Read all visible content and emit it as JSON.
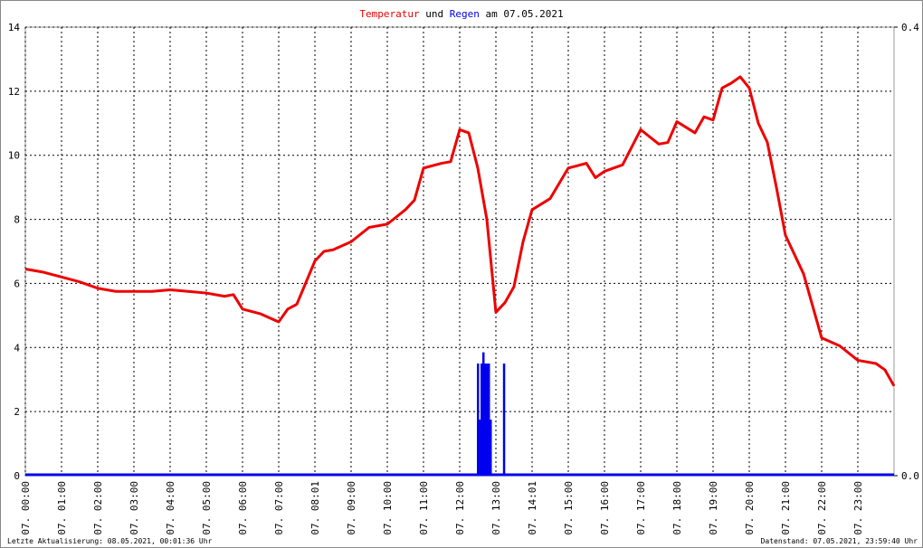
{
  "chart_data": {
    "type": "line",
    "title_join": "und",
    "title_suffix": "am 07.05.2021",
    "footer_left": "Letzte Aktualisierung: 08.05.2021, 00:01:36 Uhr",
    "footer_right": "Datenstand: 07.05.2021, 23:59:40 Uhr",
    "xlim": [
      0,
      24
    ],
    "xticks": [
      {
        "value": 0,
        "label": "07. 00:00"
      },
      {
        "value": 1,
        "label": "07. 01:00"
      },
      {
        "value": 2,
        "label": "07. 02:00"
      },
      {
        "value": 3,
        "label": "07. 03:00"
      },
      {
        "value": 4,
        "label": "07. 04:00"
      },
      {
        "value": 5,
        "label": "07. 05:00"
      },
      {
        "value": 6,
        "label": "07. 06:00"
      },
      {
        "value": 7,
        "label": "07. 07:00"
      },
      {
        "value": 8,
        "label": "07. 08:01"
      },
      {
        "value": 9,
        "label": "07. 09:00"
      },
      {
        "value": 10,
        "label": "07. 10:00"
      },
      {
        "value": 11,
        "label": "07. 11:00"
      },
      {
        "value": 12,
        "label": "07. 12:00"
      },
      {
        "value": 13,
        "label": "07. 13:00"
      },
      {
        "value": 14,
        "label": "07. 14:01"
      },
      {
        "value": 15,
        "label": "07. 15:00"
      },
      {
        "value": 16,
        "label": "07. 16:00"
      },
      {
        "value": 17,
        "label": "07. 17:00"
      },
      {
        "value": 18,
        "label": "07. 18:00"
      },
      {
        "value": 19,
        "label": "07. 19:00"
      },
      {
        "value": 20,
        "label": "07. 20:00"
      },
      {
        "value": 21,
        "label": "07. 21:00"
      },
      {
        "value": 22,
        "label": "07. 22:00"
      },
      {
        "value": 23,
        "label": "07. 23:00"
      }
    ],
    "ylim": [
      0,
      14
    ],
    "yticks": [
      0,
      2,
      4,
      6,
      8,
      10,
      12,
      14
    ],
    "y2lim": [
      0,
      0.4
    ],
    "y2ticks": [
      {
        "value": 0,
        "label": "0.0"
      },
      0.4
    ],
    "grid": true,
    "series": [
      {
        "name": "Temperatur",
        "color": "#ee0000",
        "x": [
          0,
          0.5,
          1,
          1.5,
          2,
          2.5,
          3,
          3.5,
          4,
          4.5,
          5,
          5.5,
          5.75,
          6,
          6.5,
          7,
          7.25,
          7.5,
          8,
          8.25,
          8.5,
          9,
          9.5,
          10,
          10.5,
          10.75,
          11,
          11.5,
          11.75,
          12,
          12.25,
          12.5,
          12.75,
          13,
          13.25,
          13.5,
          13.75,
          14,
          14.5,
          15,
          15.5,
          15.75,
          16,
          16.5,
          17,
          17.5,
          17.75,
          18,
          18.5,
          18.75,
          19,
          19.25,
          19.5,
          19.75,
          20,
          20.25,
          20.5,
          20.75,
          21,
          21.5,
          22,
          22.5,
          23,
          23.5,
          23.75,
          24
        ],
        "values": [
          6.45,
          6.35,
          6.2,
          6.05,
          5.85,
          5.75,
          5.75,
          5.75,
          5.8,
          5.75,
          5.7,
          5.6,
          5.65,
          5.2,
          5.05,
          4.8,
          5.2,
          5.35,
          6.7,
          7.0,
          7.05,
          7.3,
          7.75,
          7.85,
          8.3,
          8.6,
          9.6,
          9.75,
          9.8,
          10.8,
          10.7,
          9.6,
          8.0,
          5.1,
          5.4,
          5.9,
          7.3,
          8.3,
          8.65,
          9.6,
          9.75,
          9.3,
          9.5,
          9.7,
          10.8,
          10.35,
          10.4,
          11.05,
          10.7,
          11.2,
          11.1,
          12.1,
          12.25,
          12.45,
          12.1,
          11.0,
          10.4,
          9.0,
          7.5,
          6.3,
          4.3,
          4.05,
          3.6,
          3.5,
          3.3,
          2.8
        ]
      },
      {
        "name": "Regen",
        "color": "#0000ee",
        "type": "bar",
        "axis": "y2",
        "x": [
          12.5,
          12.55,
          12.6,
          12.65,
          12.7,
          12.75,
          12.8,
          12.85,
          13.22
        ],
        "values": [
          0.1,
          0.05,
          0.1,
          0.11,
          0.1,
          0.1,
          0.1,
          0.05,
          0.1
        ]
      }
    ]
  }
}
